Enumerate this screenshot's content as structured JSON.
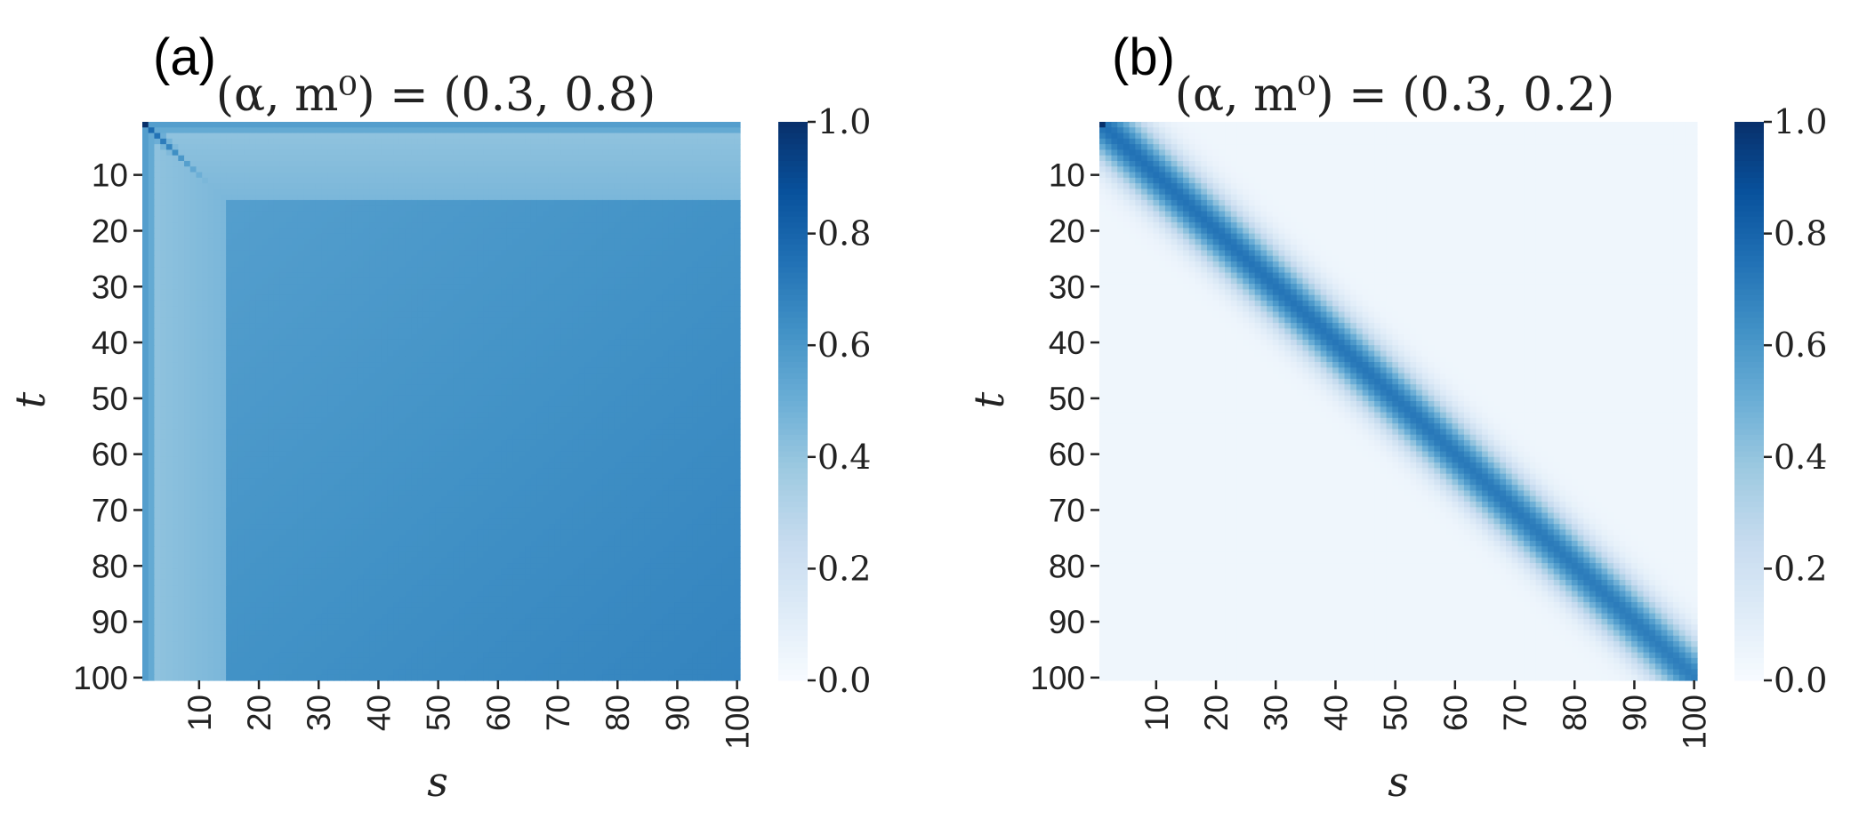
{
  "chart_data": [
    {
      "type": "heatmap",
      "panel_label": "(a)",
      "title": "(α, m⁰) = (0.3, 0.8)",
      "xlabel": "s",
      "ylabel": "t",
      "x_ticks": [
        "10",
        "20",
        "30",
        "40",
        "50",
        "60",
        "70",
        "80",
        "90",
        "100"
      ],
      "y_ticks": [
        "10",
        "20",
        "30",
        "40",
        "50",
        "60",
        "70",
        "80",
        "90",
        "100"
      ],
      "x_range": [
        1,
        100
      ],
      "y_range": [
        1,
        100
      ],
      "colorbar": {
        "range": [
          0,
          1
        ],
        "ticks": [
          "0.0",
          "0.2",
          "0.4",
          "0.6",
          "0.8",
          "1.0"
        ],
        "colormap": "Blues"
      },
      "pattern": {
        "plateau_value_start": 0.55,
        "plateau_value_end": 0.68,
        "early_band_value": 0.4,
        "early_band_end_index": 14,
        "diagonal_peak": 0.85,
        "diagonal_decay_index": 18,
        "corner_value": 1.0
      }
    },
    {
      "type": "heatmap",
      "panel_label": "(b)",
      "title": "(α, m⁰) = (0.3, 0.2)",
      "xlabel": "s",
      "ylabel": "t",
      "x_ticks": [
        "10",
        "20",
        "30",
        "40",
        "50",
        "60",
        "70",
        "80",
        "90",
        "100"
      ],
      "y_ticks": [
        "10",
        "20",
        "30",
        "40",
        "50",
        "60",
        "70",
        "80",
        "90",
        "100"
      ],
      "x_range": [
        1,
        100
      ],
      "y_range": [
        1,
        100
      ],
      "colorbar": {
        "range": [
          0,
          1
        ],
        "ticks": [
          "0.0",
          "0.2",
          "0.4",
          "0.6",
          "0.8",
          "1.0"
        ],
        "colormap": "Blues"
      },
      "pattern": {
        "background_value": 0.04,
        "diagonal_value_start": 0.75,
        "diagonal_value_end": 0.7,
        "diagonal_width_index": 4.5,
        "corner_value": 1.0
      }
    }
  ]
}
